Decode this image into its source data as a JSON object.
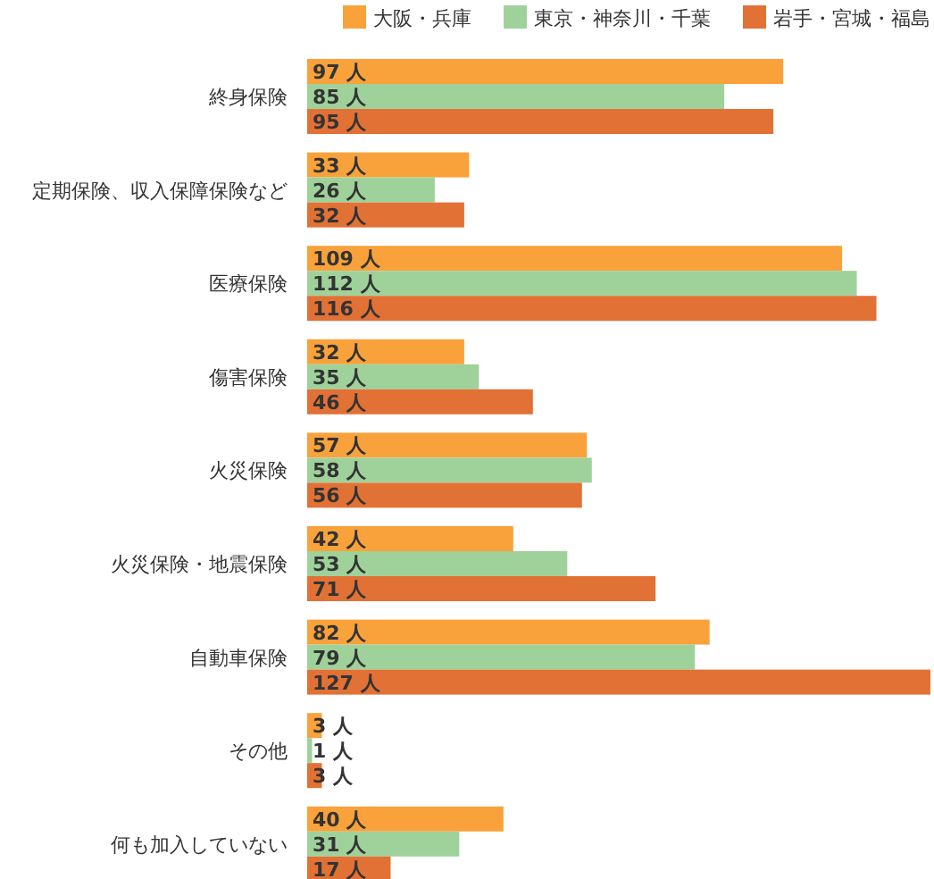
{
  "chart_data": {
    "type": "bar",
    "orientation": "horizontal",
    "legend": "top right",
    "categories": [
      "終身保険",
      "定期保険、収入保障保険など",
      "医療保険",
      "傷害保険",
      "火災保険",
      "火災保険・地震保険",
      "自動車保険",
      "その他",
      "何も加入していない"
    ],
    "series": [
      {
        "name": "大阪・兵庫",
        "color": "#f9a23b",
        "values": [
          97,
          33,
          109,
          32,
          57,
          42,
          82,
          3,
          40
        ],
        "value_labels": [
          "97 人",
          "33 人",
          "109 人",
          "32 人",
          "57 人",
          "42 人",
          "82 人",
          "3 人",
          "40 人"
        ]
      },
      {
        "name": "東京・神奈川・千葉",
        "color": "#9fd29b",
        "values": [
          85,
          26,
          112,
          35,
          58,
          53,
          79,
          1,
          31
        ],
        "value_labels": [
          "85 人",
          "26 人",
          "112 人",
          "35 人",
          "58 人",
          "53 人",
          "79 人",
          "1 人",
          "31 人"
        ]
      },
      {
        "name": "岩手・宮城・福島",
        "color": "#e27135",
        "values": [
          95,
          32,
          116,
          46,
          56,
          71,
          127,
          3,
          17
        ],
        "value_labels": [
          "95 人",
          "32 人",
          "116 人",
          "46 人",
          "56 人",
          "71 人",
          "127 人",
          "3 人",
          "17 人"
        ]
      }
    ]
  }
}
